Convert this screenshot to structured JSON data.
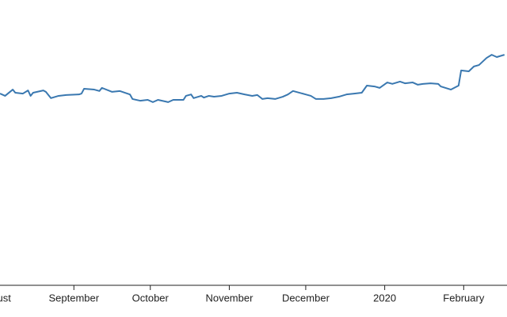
{
  "chart_data": {
    "type": "line",
    "x": [
      "2019-08-03",
      "2019-08-05",
      "2019-08-08",
      "2019-08-09",
      "2019-08-12",
      "2019-08-14",
      "2019-08-15",
      "2019-08-16",
      "2019-08-20",
      "2019-08-21",
      "2019-08-23",
      "2019-08-26",
      "2019-08-29",
      "2019-09-03",
      "2019-09-04",
      "2019-09-05",
      "2019-09-09",
      "2019-09-11",
      "2019-09-12",
      "2019-09-16",
      "2019-09-19",
      "2019-09-23",
      "2019-09-24",
      "2019-09-27",
      "2019-09-30",
      "2019-10-02",
      "2019-10-04",
      "2019-10-07",
      "2019-10-08",
      "2019-10-10",
      "2019-10-14",
      "2019-10-15",
      "2019-10-17",
      "2019-10-18",
      "2019-10-21",
      "2019-10-22",
      "2019-10-24",
      "2019-10-26",
      "2019-10-29",
      "2019-11-01",
      "2019-11-04",
      "2019-11-07",
      "2019-11-10",
      "2019-11-12",
      "2019-11-14",
      "2019-11-16",
      "2019-11-19",
      "2019-11-22",
      "2019-11-24",
      "2019-11-26",
      "2019-12-01",
      "2019-12-03",
      "2019-12-05",
      "2019-12-08",
      "2019-12-11",
      "2019-12-14",
      "2019-12-17",
      "2019-12-20",
      "2019-12-23",
      "2019-12-25",
      "2019-12-28",
      "2019-12-30",
      "2020-01-02",
      "2020-01-04",
      "2020-01-07",
      "2020-01-09",
      "2020-01-12",
      "2020-01-14",
      "2020-01-16",
      "2020-01-19",
      "2020-01-22",
      "2020-01-23",
      "2020-01-27",
      "2020-01-30",
      "2020-01-31",
      "2020-02-03",
      "2020-02-05",
      "2020-02-07",
      "2020-02-10",
      "2020-02-12",
      "2020-02-14",
      "2020-02-17"
    ],
    "series": [
      {
        "color": "#3a78b0",
        "values": [
          67.2,
          66.4,
          68.6,
          67.5,
          67.2,
          68.3,
          66.4,
          67.5,
          68.3,
          67.8,
          65.6,
          66.4,
          66.7,
          66.9,
          67.2,
          68.9,
          68.6,
          68.1,
          69.2,
          67.8,
          68.1,
          66.9,
          65.3,
          64.7,
          65.0,
          64.2,
          65.0,
          64.4,
          64.2,
          65.0,
          65.0,
          66.4,
          66.9,
          65.6,
          66.4,
          65.8,
          66.4,
          66.1,
          66.4,
          67.2,
          67.5,
          66.9,
          66.4,
          66.7,
          65.3,
          65.6,
          65.3,
          66.1,
          66.9,
          68.1,
          66.9,
          66.4,
          65.3,
          65.3,
          65.6,
          66.1,
          66.9,
          67.2,
          67.5,
          70.0,
          69.7,
          69.2,
          71.1,
          70.6,
          71.4,
          70.8,
          71.1,
          70.3,
          70.6,
          70.8,
          70.6,
          69.7,
          68.6,
          70.0,
          75.3,
          75.0,
          76.7,
          77.2,
          79.7,
          80.8,
          80.0,
          80.8
        ]
      }
    ],
    "xlim": [
      "2019-08-03",
      "2020-02-18"
    ],
    "xticks": [
      {
        "value": "2019-08-01",
        "label": "August"
      },
      {
        "value": "2019-09-01",
        "label": "September"
      },
      {
        "value": "2019-10-01",
        "label": "October"
      },
      {
        "value": "2019-11-01",
        "label": "November"
      },
      {
        "value": "2019-12-01",
        "label": "December"
      },
      {
        "value": "2020-01-01",
        "label": "2020"
      },
      {
        "value": "2020-02-01",
        "label": "February"
      }
    ],
    "ylim": [
      0,
      100
    ]
  }
}
